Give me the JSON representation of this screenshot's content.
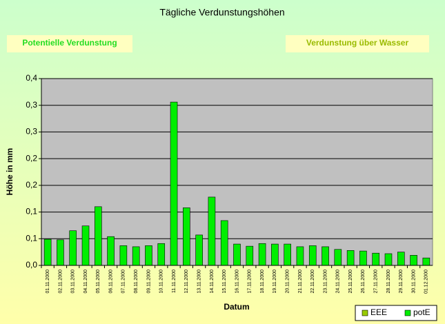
{
  "chart_data": {
    "type": "bar",
    "title": "Tägliche Verdunstungshöhen",
    "x_label": "Datum",
    "y_label": "Höhe in mm",
    "categories": [
      "01.11.2000",
      "02.11.2000",
      "03.11.2000",
      "04.11.2000",
      "05.11.2000",
      "06.11.2000",
      "07.11.2000",
      "08.11.2000",
      "09.11.2000",
      "10.11.2000",
      "11.11.2000",
      "12.11.2000",
      "13.11.2000",
      "14.11.2000",
      "15.11.2000",
      "16.11.2000",
      "17.11.2000",
      "18.11.2000",
      "19.11.2000",
      "20.11.2000",
      "21.11.2000",
      "22.11.2000",
      "23.11.2000",
      "24.11.2000",
      "25.11.2000",
      "26.11.2000",
      "27.11.2000",
      "28.11.2000",
      "29.11.2000",
      "30.11.2000",
      "01.12.2000"
    ],
    "series": [
      {
        "name": "EEE",
        "color": "#99cc00",
        "values": [
          null,
          null,
          null,
          null,
          null,
          null,
          null,
          null,
          null,
          null,
          null,
          null,
          null,
          null,
          null,
          null,
          null,
          null,
          null,
          null,
          null,
          null,
          null,
          null,
          null,
          null,
          null,
          null,
          null,
          null,
          null
        ]
      },
      {
        "name": "potE",
        "color": "#00ee00",
        "values": [
          0.049,
          0.048,
          0.065,
          0.074,
          0.11,
          0.054,
          0.037,
          0.035,
          0.037,
          0.041,
          0.306,
          0.108,
          0.057,
          0.128,
          0.084,
          0.04,
          0.036,
          0.041,
          0.04,
          0.04,
          0.035,
          0.037,
          0.035,
          0.03,
          0.028,
          0.027,
          0.023,
          0.022,
          0.025,
          0.019,
          0.014
        ]
      }
    ],
    "ylim": [
      0,
      0.35
    ],
    "yticks": [
      {
        "value": 0,
        "label": "0,0"
      },
      {
        "value": 0.05,
        "label": "0,1"
      },
      {
        "value": 0.1,
        "label": "0,1"
      },
      {
        "value": 0.15,
        "label": "0,2"
      },
      {
        "value": 0.2,
        "label": "0,2"
      },
      {
        "value": 0.25,
        "label": "0,3"
      },
      {
        "value": 0.3,
        "label": "0,3"
      },
      {
        "value": 0.35,
        "label": "0,4"
      }
    ],
    "grid": true,
    "plot_background": "#c0c0c0",
    "legend": "bottom-right"
  },
  "buttons": [
    "Potentielle Verdunstung",
    "Verdunstung über Wasser"
  ]
}
